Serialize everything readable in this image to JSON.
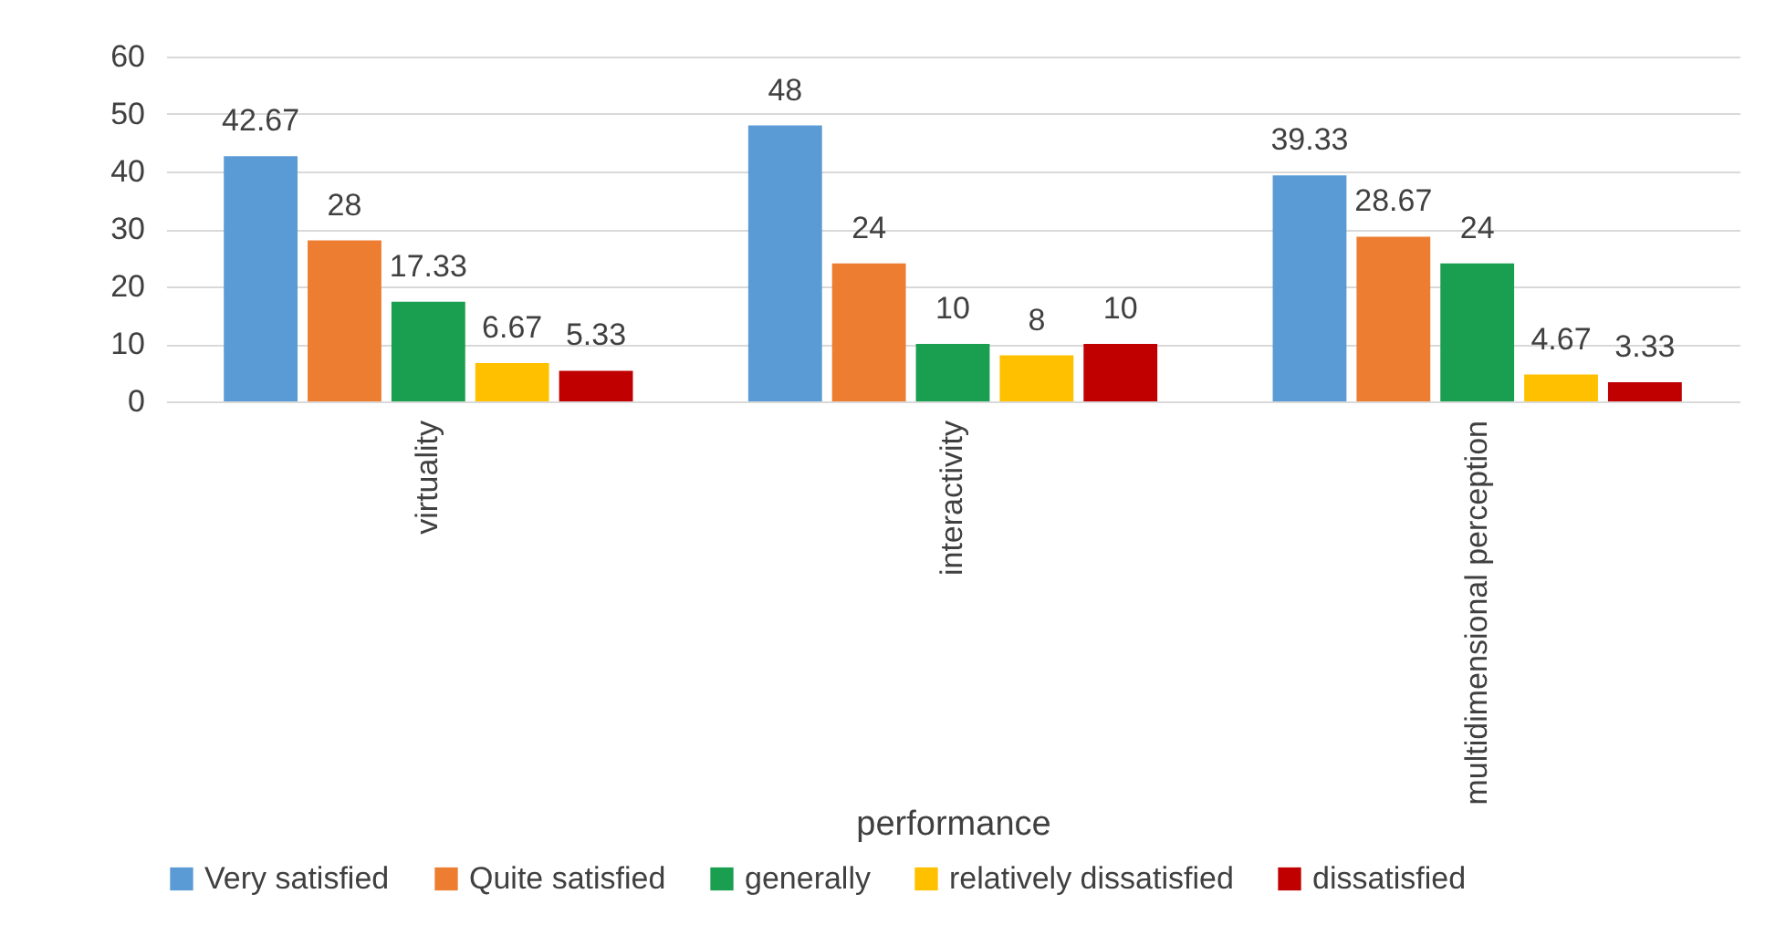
{
  "chart_data": {
    "type": "bar",
    "xlabel": "performance",
    "categories": [
      "virtuality",
      "interactivity",
      "multidimensional perception"
    ],
    "series": [
      {
        "name": "Very satisfied",
        "color": "#5b9bd5",
        "values": [
          42.67,
          48,
          39.33
        ]
      },
      {
        "name": "Quite satisfied",
        "color": "#ed7d31",
        "values": [
          28,
          24,
          28.67
        ]
      },
      {
        "name": "generally",
        "color": "#1a9e4f",
        "values": [
          17.33,
          10,
          24
        ]
      },
      {
        "name": "relatively dissatisfied",
        "color": "#ffc000",
        "values": [
          6.67,
          8,
          4.67
        ]
      },
      {
        "name": "dissatisfied",
        "color": "#c00000",
        "values": [
          5.33,
          10,
          3.33
        ]
      }
    ],
    "ylim": [
      0,
      60
    ],
    "yticks": [
      0,
      10,
      20,
      30,
      40,
      50,
      60
    ],
    "grid": "y",
    "legend": "bottom",
    "data_labels": true
  }
}
